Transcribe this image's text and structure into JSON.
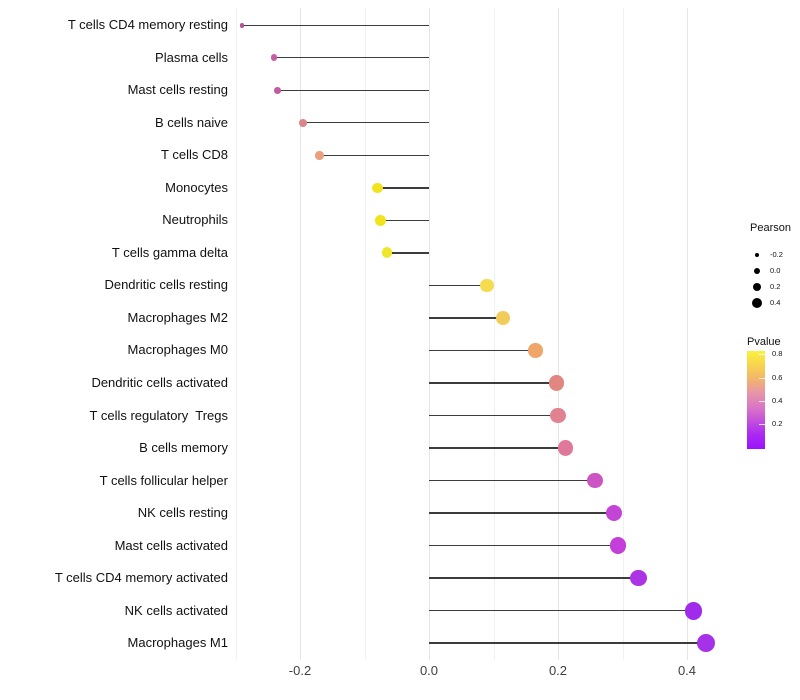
{
  "chart_data": {
    "type": "lollipop",
    "title": "",
    "xlabel": "",
    "ylabel": "",
    "xlim": [
      -0.3,
      0.45
    ],
    "grid_on": true,
    "grid_values": [
      -0.3,
      -0.2,
      -0.1,
      0.0,
      0.1,
      0.2,
      0.3,
      0.4
    ],
    "x_ticks": [
      {
        "value": -0.2,
        "label": "-0.2"
      },
      {
        "value": 0.0,
        "label": "0.0"
      },
      {
        "value": 0.2,
        "label": "0.2"
      },
      {
        "value": 0.4,
        "label": "0.4"
      }
    ],
    "series_note": "each row: immune cell type, Pearson correlation (dot position & size), Pvalue encoded by dot color",
    "rows": [
      {
        "label": "T cells CD4 memory resting",
        "pearson": -0.29,
        "color": "#B4539C"
      },
      {
        "label": "Plasma cells",
        "pearson": -0.24,
        "color": "#C75DA6"
      },
      {
        "label": "Mast cells resting",
        "pearson": -0.235,
        "color": "#C25AA2"
      },
      {
        "label": "B cells naive",
        "pearson": -0.195,
        "color": "#DE8687"
      },
      {
        "label": "T cells CD8",
        "pearson": -0.17,
        "color": "#E9A07F"
      },
      {
        "label": "Monocytes",
        "pearson": -0.08,
        "color": "#F1E41F"
      },
      {
        "label": "Neutrophils",
        "pearson": -0.075,
        "color": "#F1E41F"
      },
      {
        "label": "T cells gamma delta",
        "pearson": -0.065,
        "color": "#EFE52C"
      },
      {
        "label": "Dendritic cells resting",
        "pearson": 0.09,
        "color": "#F4DC4E"
      },
      {
        "label": "Macrophages M2",
        "pearson": 0.115,
        "color": "#F2CC5B"
      },
      {
        "label": "Macrophages M0",
        "pearson": 0.165,
        "color": "#EFA668"
      },
      {
        "label": "Dendritic cells activated",
        "pearson": 0.198,
        "color": "#E28681"
      },
      {
        "label": "T cells regulatory  Tregs",
        "pearson": 0.2,
        "color": "#E18290"
      },
      {
        "label": "B cells memory",
        "pearson": 0.212,
        "color": "#E0789B"
      },
      {
        "label": "T cells follicular helper",
        "pearson": 0.257,
        "color": "#CD54C3"
      },
      {
        "label": "NK cells resting",
        "pearson": 0.287,
        "color": "#C345D6"
      },
      {
        "label": "Mast cells activated",
        "pearson": 0.293,
        "color": "#C43ED9"
      },
      {
        "label": "T cells CD4 memory activated",
        "pearson": 0.325,
        "color": "#AD34E4"
      },
      {
        "label": "NK cells activated",
        "pearson": 0.41,
        "color": "#A02BEC"
      },
      {
        "label": "Macrophages M1",
        "pearson": 0.43,
        "color": "#A532E8"
      }
    ]
  },
  "legend": {
    "pearson": {
      "title": "Pearson",
      "dot_color": "#000000",
      "entries": [
        {
          "label": "-0.2",
          "size": 4.5
        },
        {
          "label": "0.0",
          "size": 6.5
        },
        {
          "label": "0.2",
          "size": 8.5
        },
        {
          "label": "0.4",
          "size": 10
        }
      ]
    },
    "pvalue": {
      "title": "Pvalue",
      "gradient": [
        "#FBF13E",
        "#F7D44E",
        "#F2B46C",
        "#E795A8",
        "#DA77C4",
        "#C44FDC",
        "#A928F2",
        "#9C13FD"
      ],
      "ticks": [
        {
          "label": "0.8",
          "pos": 0.03
        },
        {
          "label": "0.6",
          "pos": 0.276
        },
        {
          "label": "0.4",
          "pos": 0.51
        },
        {
          "label": "0.2",
          "pos": 0.745
        }
      ]
    }
  }
}
